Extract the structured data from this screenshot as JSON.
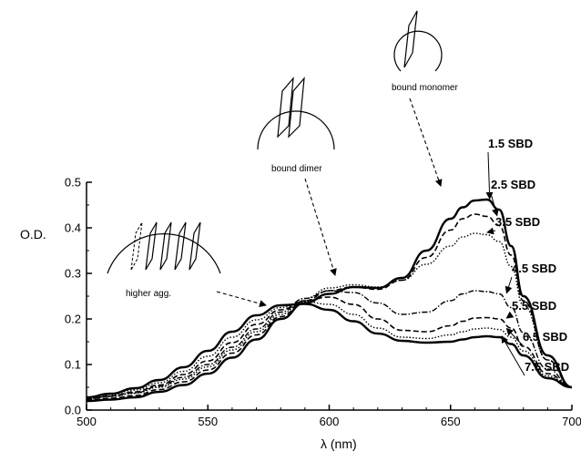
{
  "chart_data": {
    "type": "line",
    "title": "",
    "xlabel": "λ  (nm)",
    "ylabel": "O.D.",
    "xlim": [
      500,
      700
    ],
    "ylim": [
      0.0,
      0.5
    ],
    "xticks": [
      500,
      550,
      600,
      650,
      700
    ],
    "yticks": [
      0.0,
      0.1,
      0.2,
      0.3,
      0.4,
      0.5
    ],
    "grid": false,
    "x": [
      500,
      510,
      520,
      530,
      540,
      550,
      560,
      570,
      580,
      590,
      600,
      610,
      620,
      630,
      640,
      650,
      655,
      660,
      665,
      670,
      675,
      680,
      690,
      700
    ],
    "series": [
      {
        "name": "1.5 SBD",
        "style": "solid-thick",
        "values": [
          0.02,
          0.023,
          0.028,
          0.04,
          0.055,
          0.08,
          0.115,
          0.155,
          0.2,
          0.235,
          0.255,
          0.27,
          0.268,
          0.29,
          0.35,
          0.42,
          0.445,
          0.46,
          0.462,
          0.44,
          0.36,
          0.25,
          0.12,
          0.05
        ]
      },
      {
        "name": "2.5 SBD",
        "style": "dashed",
        "values": [
          0.022,
          0.026,
          0.032,
          0.045,
          0.062,
          0.088,
          0.125,
          0.165,
          0.205,
          0.24,
          0.262,
          0.27,
          0.265,
          0.285,
          0.335,
          0.395,
          0.42,
          0.43,
          0.425,
          0.405,
          0.34,
          0.24,
          0.11,
          0.05
        ]
      },
      {
        "name": "3.5 SBD",
        "style": "dotted",
        "values": [
          0.025,
          0.03,
          0.037,
          0.05,
          0.068,
          0.095,
          0.132,
          0.172,
          0.21,
          0.245,
          0.268,
          0.275,
          0.27,
          0.285,
          0.32,
          0.36,
          0.38,
          0.388,
          0.385,
          0.37,
          0.315,
          0.23,
          0.11,
          0.05
        ]
      },
      {
        "name": "4.5 SBD",
        "style": "dash-dot",
        "values": [
          0.025,
          0.03,
          0.038,
          0.052,
          0.072,
          0.1,
          0.138,
          0.178,
          0.215,
          0.245,
          0.262,
          0.258,
          0.235,
          0.21,
          0.215,
          0.24,
          0.255,
          0.262,
          0.26,
          0.255,
          0.225,
          0.17,
          0.09,
          0.05
        ]
      },
      {
        "name": "5.5 SBD",
        "style": "dashed",
        "values": [
          0.025,
          0.031,
          0.04,
          0.055,
          0.078,
          0.108,
          0.148,
          0.188,
          0.22,
          0.24,
          0.248,
          0.232,
          0.2,
          0.175,
          0.172,
          0.185,
          0.195,
          0.202,
          0.203,
          0.2,
          0.18,
          0.14,
          0.08,
          0.05
        ]
      },
      {
        "name": "6.5 SBD",
        "style": "dotted",
        "values": [
          0.027,
          0.034,
          0.044,
          0.06,
          0.085,
          0.118,
          0.16,
          0.198,
          0.225,
          0.238,
          0.232,
          0.21,
          0.18,
          0.16,
          0.157,
          0.165,
          0.172,
          0.178,
          0.18,
          0.177,
          0.16,
          0.13,
          0.075,
          0.05
        ]
      },
      {
        "name": "7.5 SBD",
        "style": "solid-thick",
        "values": [
          0.028,
          0.036,
          0.048,
          0.066,
          0.094,
          0.13,
          0.172,
          0.208,
          0.23,
          0.233,
          0.22,
          0.195,
          0.168,
          0.152,
          0.148,
          0.15,
          0.155,
          0.16,
          0.162,
          0.16,
          0.145,
          0.12,
          0.07,
          0.05
        ]
      }
    ],
    "annotations": [
      {
        "text": "bound monomer",
        "cartoon": "one plane on arc"
      },
      {
        "text": "bound dimer",
        "cartoon": "two planes on arc"
      },
      {
        "text": "higher agg.",
        "cartoon": "stacked planes on arc"
      }
    ]
  }
}
